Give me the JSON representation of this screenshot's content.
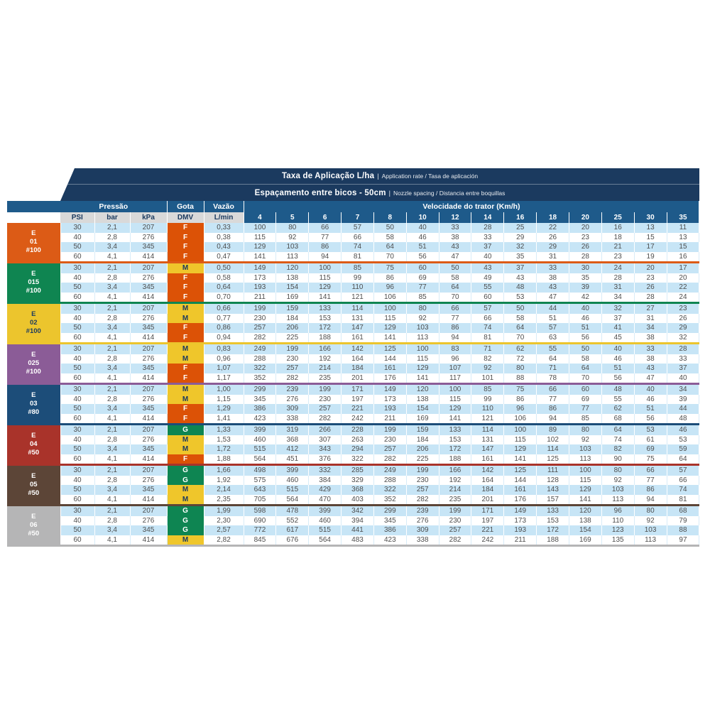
{
  "header": {
    "title1_main": "Taxa de Aplicação L/ha",
    "title1_sep": "|",
    "title1_sub": "Application rate / Tasa de aplicación",
    "title2_main": "Espaçamento entre bicos - 50cm",
    "title2_sep": "|",
    "title2_sub": "Nozzle spacing / Distancia entre boquillas",
    "pressure_label": "Pressão",
    "drop_label": "Gota",
    "flow_label": "Vazão",
    "speed_label": "Velocidade do trator (Km/h)",
    "sub_psi": "PSI",
    "sub_bar": "bar",
    "sub_kpa": "kPa",
    "sub_dmv": "DMV",
    "sub_flow": "L/min",
    "speeds": [
      "4",
      "5",
      "6",
      "7",
      "8",
      "10",
      "12",
      "14",
      "16",
      "18",
      "20",
      "25",
      "30",
      "35"
    ]
  },
  "colors": {
    "title_band": "#1B3A5F",
    "header_blue": "#1E5A8A",
    "subheader_gray": "#D9D9D9",
    "stripe_blue": "#C7E5F6",
    "data_text": "#4D4D4D",
    "dmv": {
      "F": "#DC5206",
      "M": "#EFC62B",
      "G": "#0E8552"
    },
    "dmv_text": {
      "F": "#FFFFFF",
      "M": "#1B3A5F",
      "G": "#FFFFFF"
    }
  },
  "groups": [
    {
      "label_lines": [
        "E",
        "01",
        "#100"
      ],
      "color": "#DC5B16",
      "text_color": "#FFFFFF",
      "rows": [
        {
          "psi": "30",
          "bar": "2,1",
          "kpa": "207",
          "dmv": "F",
          "flow": "0,33",
          "values": [
            "100",
            "80",
            "66",
            "57",
            "50",
            "40",
            "33",
            "28",
            "25",
            "22",
            "20",
            "16",
            "13",
            "11"
          ]
        },
        {
          "psi": "40",
          "bar": "2,8",
          "kpa": "276",
          "dmv": "F",
          "flow": "0,38",
          "values": [
            "115",
            "92",
            "77",
            "66",
            "58",
            "46",
            "38",
            "33",
            "29",
            "26",
            "23",
            "18",
            "15",
            "13"
          ]
        },
        {
          "psi": "50",
          "bar": "3,4",
          "kpa": "345",
          "dmv": "F",
          "flow": "0,43",
          "values": [
            "129",
            "103",
            "86",
            "74",
            "64",
            "51",
            "43",
            "37",
            "32",
            "29",
            "26",
            "21",
            "17",
            "15"
          ]
        },
        {
          "psi": "60",
          "bar": "4,1",
          "kpa": "414",
          "dmv": "F",
          "flow": "0,47",
          "values": [
            "141",
            "113",
            "94",
            "81",
            "70",
            "56",
            "47",
            "40",
            "35",
            "31",
            "28",
            "23",
            "19",
            "16"
          ]
        }
      ]
    },
    {
      "label_lines": [
        "E",
        "015",
        "#100"
      ],
      "color": "#0F8551",
      "text_color": "#FFFFFF",
      "rows": [
        {
          "psi": "30",
          "bar": "2,1",
          "kpa": "207",
          "dmv": "M",
          "flow": "0,50",
          "values": [
            "149",
            "120",
            "100",
            "85",
            "75",
            "60",
            "50",
            "43",
            "37",
            "33",
            "30",
            "24",
            "20",
            "17"
          ]
        },
        {
          "psi": "40",
          "bar": "2,8",
          "kpa": "276",
          "dmv": "F",
          "flow": "0,58",
          "values": [
            "173",
            "138",
            "115",
            "99",
            "86",
            "69",
            "58",
            "49",
            "43",
            "38",
            "35",
            "28",
            "23",
            "20"
          ]
        },
        {
          "psi": "50",
          "bar": "3,4",
          "kpa": "345",
          "dmv": "F",
          "flow": "0,64",
          "values": [
            "193",
            "154",
            "129",
            "110",
            "96",
            "77",
            "64",
            "55",
            "48",
            "43",
            "39",
            "31",
            "26",
            "22"
          ]
        },
        {
          "psi": "60",
          "bar": "4,1",
          "kpa": "414",
          "dmv": "F",
          "flow": "0,70",
          "values": [
            "211",
            "169",
            "141",
            "121",
            "106",
            "85",
            "70",
            "60",
            "53",
            "47",
            "42",
            "34",
            "28",
            "24"
          ]
        }
      ]
    },
    {
      "label_lines": [
        "E",
        "02",
        "#100"
      ],
      "color": "#ECC52D",
      "text_color": "#1B3A5F",
      "rows": [
        {
          "psi": "30",
          "bar": "2,1",
          "kpa": "207",
          "dmv": "M",
          "flow": "0,66",
          "values": [
            "199",
            "159",
            "133",
            "114",
            "100",
            "80",
            "66",
            "57",
            "50",
            "44",
            "40",
            "32",
            "27",
            "23"
          ]
        },
        {
          "psi": "40",
          "bar": "2,8",
          "kpa": "276",
          "dmv": "M",
          "flow": "0,77",
          "values": [
            "230",
            "184",
            "153",
            "131",
            "115",
            "92",
            "77",
            "66",
            "58",
            "51",
            "46",
            "37",
            "31",
            "26"
          ]
        },
        {
          "psi": "50",
          "bar": "3,4",
          "kpa": "345",
          "dmv": "F",
          "flow": "0,86",
          "values": [
            "257",
            "206",
            "172",
            "147",
            "129",
            "103",
            "86",
            "74",
            "64",
            "57",
            "51",
            "41",
            "34",
            "29"
          ]
        },
        {
          "psi": "60",
          "bar": "4,1",
          "kpa": "414",
          "dmv": "F",
          "flow": "0,94",
          "values": [
            "282",
            "225",
            "188",
            "161",
            "141",
            "113",
            "94",
            "81",
            "70",
            "63",
            "56",
            "45",
            "38",
            "32"
          ]
        }
      ]
    },
    {
      "label_lines": [
        "E",
        "025",
        "#100"
      ],
      "color": "#8B5C97",
      "text_color": "#FFFFFF",
      "rows": [
        {
          "psi": "30",
          "bar": "2,1",
          "kpa": "207",
          "dmv": "M",
          "flow": "0,83",
          "values": [
            "249",
            "199",
            "166",
            "142",
            "125",
            "100",
            "83",
            "71",
            "62",
            "55",
            "50",
            "40",
            "33",
            "28"
          ]
        },
        {
          "psi": "40",
          "bar": "2,8",
          "kpa": "276",
          "dmv": "M",
          "flow": "0,96",
          "values": [
            "288",
            "230",
            "192",
            "164",
            "144",
            "115",
            "96",
            "82",
            "72",
            "64",
            "58",
            "46",
            "38",
            "33"
          ]
        },
        {
          "psi": "50",
          "bar": "3,4",
          "kpa": "345",
          "dmv": "F",
          "flow": "1,07",
          "values": [
            "322",
            "257",
            "214",
            "184",
            "161",
            "129",
            "107",
            "92",
            "80",
            "71",
            "64",
            "51",
            "43",
            "37"
          ]
        },
        {
          "psi": "60",
          "bar": "4,1",
          "kpa": "414",
          "dmv": "F",
          "flow": "1,17",
          "values": [
            "352",
            "282",
            "235",
            "201",
            "176",
            "141",
            "117",
            "101",
            "88",
            "78",
            "70",
            "56",
            "47",
            "40"
          ]
        }
      ]
    },
    {
      "label_lines": [
        "E",
        "03",
        "#80"
      ],
      "color": "#1C4D79",
      "text_color": "#FFFFFF",
      "rows": [
        {
          "psi": "30",
          "bar": "2,1",
          "kpa": "207",
          "dmv": "M",
          "flow": "1,00",
          "values": [
            "299",
            "239",
            "199",
            "171",
            "149",
            "120",
            "100",
            "85",
            "75",
            "66",
            "60",
            "48",
            "40",
            "34"
          ]
        },
        {
          "psi": "40",
          "bar": "2,8",
          "kpa": "276",
          "dmv": "M",
          "flow": "1,15",
          "values": [
            "345",
            "276",
            "230",
            "197",
            "173",
            "138",
            "115",
            "99",
            "86",
            "77",
            "69",
            "55",
            "46",
            "39"
          ]
        },
        {
          "psi": "50",
          "bar": "3,4",
          "kpa": "345",
          "dmv": "F",
          "flow": "1,29",
          "values": [
            "386",
            "309",
            "257",
            "221",
            "193",
            "154",
            "129",
            "110",
            "96",
            "86",
            "77",
            "62",
            "51",
            "44"
          ]
        },
        {
          "psi": "60",
          "bar": "4,1",
          "kpa": "414",
          "dmv": "F",
          "flow": "1,41",
          "values": [
            "423",
            "338",
            "282",
            "242",
            "211",
            "169",
            "141",
            "121",
            "106",
            "94",
            "85",
            "68",
            "56",
            "48"
          ]
        }
      ]
    },
    {
      "label_lines": [
        "E",
        "04",
        "#50"
      ],
      "color": "#A9332A",
      "text_color": "#FFFFFF",
      "rows": [
        {
          "psi": "30",
          "bar": "2,1",
          "kpa": "207",
          "dmv": "G",
          "flow": "1,33",
          "values": [
            "399",
            "319",
            "266",
            "228",
            "199",
            "159",
            "133",
            "114",
            "100",
            "89",
            "80",
            "64",
            "53",
            "46"
          ]
        },
        {
          "psi": "40",
          "bar": "2,8",
          "kpa": "276",
          "dmv": "M",
          "flow": "1,53",
          "values": [
            "460",
            "368",
            "307",
            "263",
            "230",
            "184",
            "153",
            "131",
            "115",
            "102",
            "92",
            "74",
            "61",
            "53"
          ]
        },
        {
          "psi": "50",
          "bar": "3,4",
          "kpa": "345",
          "dmv": "M",
          "flow": "1,72",
          "values": [
            "515",
            "412",
            "343",
            "294",
            "257",
            "206",
            "172",
            "147",
            "129",
            "114",
            "103",
            "82",
            "69",
            "59"
          ]
        },
        {
          "psi": "60",
          "bar": "4,1",
          "kpa": "414",
          "dmv": "F",
          "flow": "1,88",
          "values": [
            "564",
            "451",
            "376",
            "322",
            "282",
            "225",
            "188",
            "161",
            "141",
            "125",
            "113",
            "90",
            "75",
            "64"
          ]
        }
      ]
    },
    {
      "label_lines": [
        "E",
        "05",
        "#50"
      ],
      "color": "#5C4537",
      "text_color": "#FFFFFF",
      "rows": [
        {
          "psi": "30",
          "bar": "2,1",
          "kpa": "207",
          "dmv": "G",
          "flow": "1,66",
          "values": [
            "498",
            "399",
            "332",
            "285",
            "249",
            "199",
            "166",
            "142",
            "125",
            "111",
            "100",
            "80",
            "66",
            "57"
          ]
        },
        {
          "psi": "40",
          "bar": "2,8",
          "kpa": "276",
          "dmv": "G",
          "flow": "1,92",
          "values": [
            "575",
            "460",
            "384",
            "329",
            "288",
            "230",
            "192",
            "164",
            "144",
            "128",
            "115",
            "92",
            "77",
            "66"
          ]
        },
        {
          "psi": "50",
          "bar": "3,4",
          "kpa": "345",
          "dmv": "M",
          "flow": "2,14",
          "values": [
            "643",
            "515",
            "429",
            "368",
            "322",
            "257",
            "214",
            "184",
            "161",
            "143",
            "129",
            "103",
            "86",
            "74"
          ]
        },
        {
          "psi": "60",
          "bar": "4,1",
          "kpa": "414",
          "dmv": "M",
          "flow": "2,35",
          "values": [
            "705",
            "564",
            "470",
            "403",
            "352",
            "282",
            "235",
            "201",
            "176",
            "157",
            "141",
            "113",
            "94",
            "81"
          ]
        }
      ]
    },
    {
      "label_lines": [
        "E",
        "06",
        "#50"
      ],
      "color": "#B5B5B6",
      "text_color": "#FFFFFF",
      "rows": [
        {
          "psi": "30",
          "bar": "2,1",
          "kpa": "207",
          "dmv": "G",
          "flow": "1,99",
          "values": [
            "598",
            "478",
            "399",
            "342",
            "299",
            "239",
            "199",
            "171",
            "149",
            "133",
            "120",
            "96",
            "80",
            "68"
          ]
        },
        {
          "psi": "40",
          "bar": "2,8",
          "kpa": "276",
          "dmv": "G",
          "flow": "2,30",
          "values": [
            "690",
            "552",
            "460",
            "394",
            "345",
            "276",
            "230",
            "197",
            "173",
            "153",
            "138",
            "110",
            "92",
            "79"
          ]
        },
        {
          "psi": "50",
          "bar": "3,4",
          "kpa": "345",
          "dmv": "G",
          "flow": "2,57",
          "values": [
            "772",
            "617",
            "515",
            "441",
            "386",
            "309",
            "257",
            "221",
            "193",
            "172",
            "154",
            "123",
            "103",
            "88"
          ]
        },
        {
          "psi": "60",
          "bar": "4,1",
          "kpa": "414",
          "dmv": "M",
          "flow": "2,82",
          "values": [
            "845",
            "676",
            "564",
            "483",
            "423",
            "338",
            "282",
            "242",
            "211",
            "188",
            "169",
            "135",
            "113",
            "97"
          ]
        }
      ]
    }
  ]
}
